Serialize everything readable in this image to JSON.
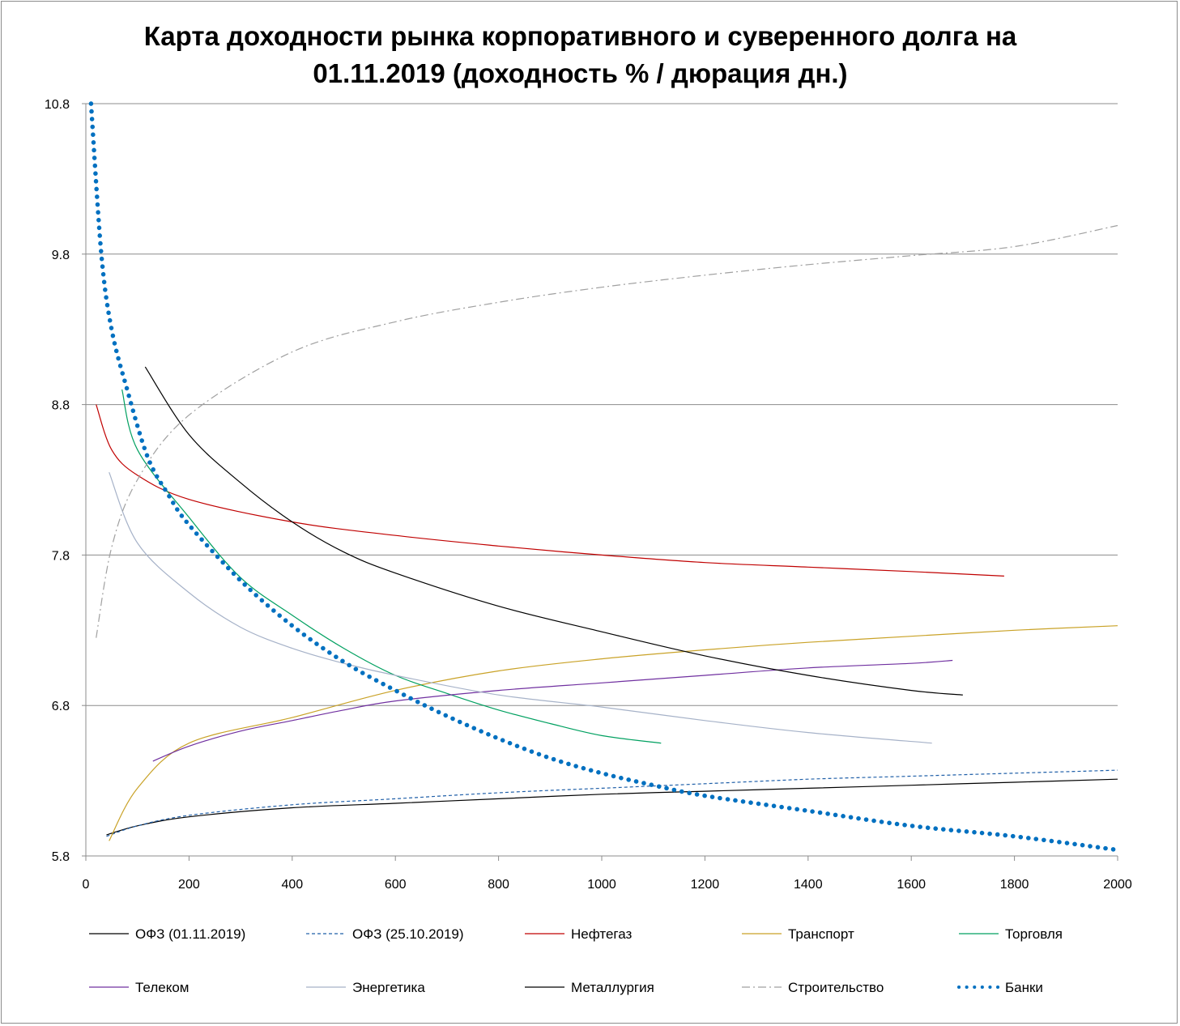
{
  "chart_data": {
    "type": "line",
    "title_lines": [
      "Карта доходности рынка корпоративного и суверенного долга на",
      "01.11.2019 (доходность % / дюрация дн.)"
    ],
    "xlabel": "",
    "ylabel": "",
    "xlim": [
      0,
      2000
    ],
    "ylim": [
      5.8,
      10.8
    ],
    "xticks": [
      "0",
      "200",
      "400",
      "600",
      "800",
      "1000",
      "1200",
      "1400",
      "1600",
      "1800",
      "2000"
    ],
    "yticks": [
      "5.8",
      "6.8",
      "7.8",
      "8.8",
      "9.8",
      "10.8"
    ],
    "grid": "horizontal",
    "legend_position": "bottom",
    "series": [
      {
        "name": "ОФЗ (01.11.2019)",
        "color": "#000000",
        "style": "solid",
        "x": [
          40,
          100,
          200,
          400,
          600,
          800,
          1000,
          1200,
          1400,
          1600,
          1800,
          2000
        ],
        "y": [
          5.94,
          6.0,
          6.06,
          6.12,
          6.15,
          6.18,
          6.21,
          6.23,
          6.25,
          6.27,
          6.29,
          6.31
        ]
      },
      {
        "name": "ОФЗ (25.10.2019)",
        "color": "#1f5fa8",
        "style": "dashed",
        "x": [
          40,
          100,
          200,
          400,
          600,
          800,
          1000,
          1200,
          1400,
          1600,
          1800,
          2000
        ],
        "y": [
          5.93,
          6.0,
          6.07,
          6.14,
          6.18,
          6.22,
          6.25,
          6.28,
          6.31,
          6.33,
          6.35,
          6.37
        ]
      },
      {
        "name": "Нефтегаз",
        "color": "#c00000",
        "style": "solid",
        "x": [
          20,
          50,
          100,
          200,
          400,
          600,
          800,
          1000,
          1200,
          1400,
          1600,
          1780
        ],
        "y": [
          8.8,
          8.5,
          8.33,
          8.17,
          8.02,
          7.93,
          7.86,
          7.8,
          7.75,
          7.72,
          7.69,
          7.66
        ]
      },
      {
        "name": "Транспорт",
        "color": "#c9a227",
        "style": "solid",
        "x": [
          45,
          100,
          200,
          400,
          600,
          800,
          1000,
          1200,
          1400,
          1600,
          1800,
          2000
        ],
        "y": [
          5.9,
          6.25,
          6.55,
          6.72,
          6.9,
          7.03,
          7.11,
          7.17,
          7.22,
          7.26,
          7.3,
          7.33
        ]
      },
      {
        "name": "Торговля",
        "color": "#00a060",
        "style": "solid",
        "x": [
          70,
          100,
          200,
          300,
          400,
          500,
          600,
          700,
          800,
          900,
          1000,
          1115
        ],
        "y": [
          8.9,
          8.5,
          8.05,
          7.65,
          7.4,
          7.18,
          7.0,
          6.88,
          6.77,
          6.68,
          6.6,
          6.55
        ]
      },
      {
        "name": "Телеком",
        "color": "#7030a0",
        "style": "solid",
        "x": [
          130,
          200,
          300,
          400,
          500,
          600,
          800,
          1000,
          1200,
          1400,
          1600,
          1680
        ],
        "y": [
          6.43,
          6.53,
          6.63,
          6.7,
          6.77,
          6.83,
          6.9,
          6.95,
          7.0,
          7.05,
          7.08,
          7.1
        ]
      },
      {
        "name": "Энергетика",
        "color": "#a6b2c8",
        "style": "solid",
        "x": [
          45,
          100,
          200,
          300,
          400,
          500,
          600,
          800,
          1000,
          1200,
          1400,
          1640
        ],
        "y": [
          8.35,
          7.88,
          7.55,
          7.32,
          7.18,
          7.08,
          7.0,
          6.87,
          6.79,
          6.7,
          6.62,
          6.55
        ]
      },
      {
        "name": "Металлургия",
        "color": "#000000",
        "style": "solid",
        "x": [
          115,
          200,
          300,
          400,
          500,
          600,
          800,
          1000,
          1200,
          1400,
          1600,
          1700
        ],
        "y": [
          9.05,
          8.6,
          8.28,
          8.02,
          7.82,
          7.68,
          7.46,
          7.29,
          7.13,
          7.0,
          6.9,
          6.87
        ]
      },
      {
        "name": "Строительство",
        "color": "#a0a0a0",
        "style": "dashdot",
        "x": [
          20,
          50,
          100,
          200,
          400,
          600,
          800,
          1000,
          1200,
          1400,
          1600,
          1800,
          2000
        ],
        "y": [
          7.25,
          7.85,
          8.3,
          8.73,
          9.15,
          9.35,
          9.48,
          9.58,
          9.66,
          9.73,
          9.79,
          9.85,
          9.99
        ]
      },
      {
        "name": "Банки",
        "color": "#0070c0",
        "style": "dotted",
        "x": [
          10,
          30,
          50,
          80,
          120,
          160,
          200,
          300,
          400,
          500,
          600,
          700,
          800,
          900,
          1000,
          1100,
          1200,
          1400,
          1600,
          1800,
          2000
        ],
        "y": [
          10.8,
          9.8,
          9.3,
          8.9,
          8.45,
          8.2,
          8.0,
          7.63,
          7.33,
          7.09,
          6.9,
          6.73,
          6.58,
          6.45,
          6.35,
          6.27,
          6.2,
          6.1,
          6.0,
          5.93,
          5.84
        ]
      }
    ]
  }
}
